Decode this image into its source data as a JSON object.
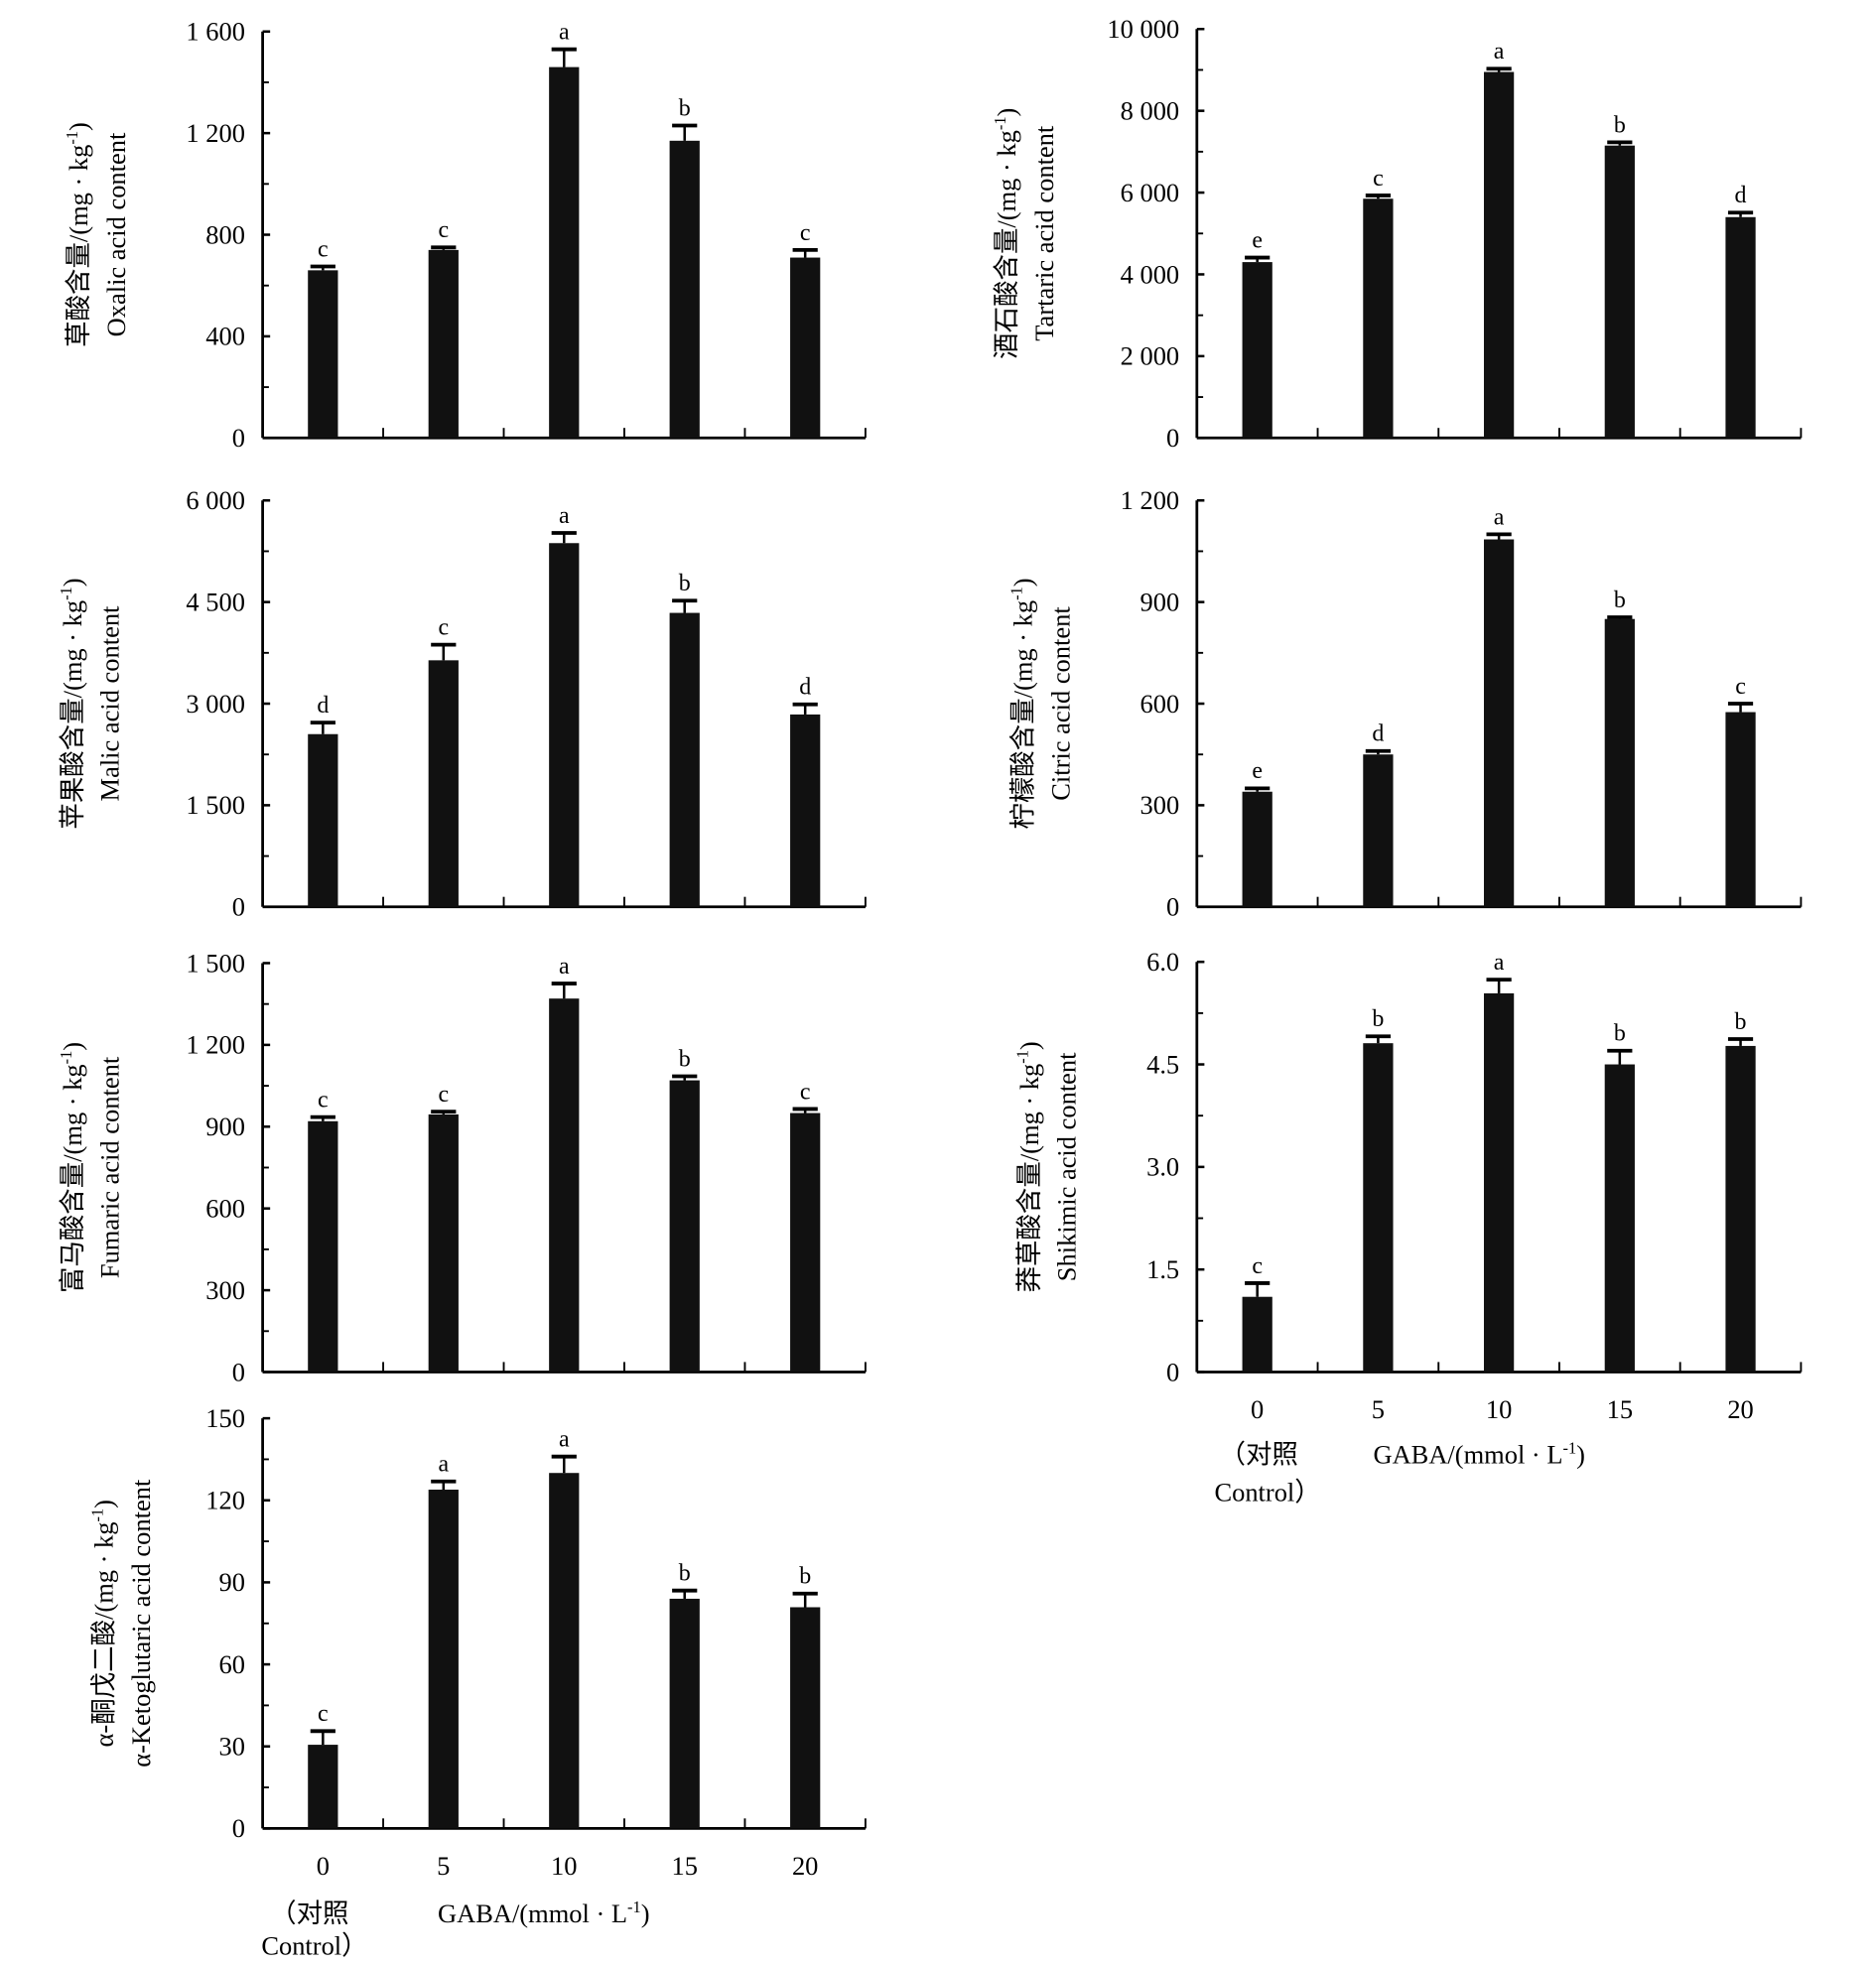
{
  "x_categories": [
    "0",
    "5",
    "10",
    "15",
    "20"
  ],
  "x_control_line1": "（对照",
  "x_control_line2": "Control）",
  "x_axis_title": "GABA/(mmol · L",
  "x_axis_title_sup": "-1",
  "x_axis_title_end": ")",
  "chart_data": [
    {
      "type": "bar",
      "id": "oxalic",
      "ylabel_cn": "草酸含量/(mg · kg",
      "ylabel_en": "Oxalic acid content",
      "ylim": [
        0,
        1600
      ],
      "yticks": [
        0,
        400,
        800,
        1200,
        1600
      ],
      "ytick_labels": [
        "0",
        "400",
        "800",
        "1 200",
        "1 600"
      ],
      "values": [
        660,
        740,
        1460,
        1170,
        710
      ],
      "errors": [
        15,
        10,
        70,
        60,
        30
      ],
      "letters": [
        "c",
        "c",
        "a",
        "b",
        "c"
      ]
    },
    {
      "type": "bar",
      "id": "tartaric",
      "ylabel_cn": "酒石酸含量/(mg · kg",
      "ylabel_en": "Tartaric acid content",
      "ylim": [
        0,
        10000
      ],
      "yticks": [
        0,
        2000,
        4000,
        6000,
        8000,
        10000
      ],
      "ytick_labels": [
        "0",
        "2 000",
        "4 000",
        "6 000",
        "8 000",
        "10 000"
      ],
      "values": [
        4300,
        5850,
        8950,
        7150,
        5400
      ],
      "errors": [
        110,
        80,
        80,
        80,
        110
      ],
      "letters": [
        "e",
        "c",
        "a",
        "b",
        "d"
      ]
    },
    {
      "type": "bar",
      "id": "malic",
      "ylabel_cn": "苹果酸含量/(mg · kg",
      "ylabel_en": "Malic acid content",
      "ylim": [
        0,
        6000
      ],
      "yticks": [
        0,
        1500,
        3000,
        4500,
        6000
      ],
      "ytick_labels": [
        "0",
        "1 500",
        "3 000",
        "4 500",
        "6 000"
      ],
      "values": [
        2550,
        3640,
        5370,
        4340,
        2840
      ],
      "errors": [
        170,
        230,
        150,
        180,
        150
      ],
      "letters": [
        "d",
        "c",
        "a",
        "b",
        "d"
      ]
    },
    {
      "type": "bar",
      "id": "citric",
      "ylabel_cn": "柠檬酸含量/(mg · kg",
      "ylabel_en": "Citric acid content",
      "ylim": [
        0,
        1200
      ],
      "yticks": [
        0,
        300,
        600,
        900,
        1200
      ],
      "ytick_labels": [
        "0",
        "300",
        "600",
        "900",
        "1 200"
      ],
      "values": [
        340,
        450,
        1085,
        850,
        575
      ],
      "errors": [
        10,
        10,
        15,
        5,
        25
      ],
      "letters": [
        "e",
        "d",
        "a",
        "b",
        "c"
      ]
    },
    {
      "type": "bar",
      "id": "fumaric",
      "ylabel_cn": "富马酸含量/(mg · kg",
      "ylabel_en": "Fumaric acid content",
      "ylim": [
        0,
        1500
      ],
      "yticks": [
        0,
        300,
        600,
        900,
        1200,
        1500
      ],
      "ytick_labels": [
        "0",
        "300",
        "600",
        "900",
        "1 200",
        "1 500"
      ],
      "values": [
        920,
        945,
        1370,
        1070,
        950
      ],
      "errors": [
        15,
        10,
        55,
        15,
        15
      ],
      "letters": [
        "c",
        "c",
        "a",
        "b",
        "c"
      ]
    },
    {
      "type": "bar",
      "id": "shikimic",
      "ylabel_cn": "莽草酸含量/(mg · kg",
      "ylabel_en": "Shikimic acid content",
      "ylim": [
        0,
        6
      ],
      "yticks": [
        0,
        1.5,
        3,
        4.5,
        6
      ],
      "ytick_labels": [
        "0",
        "1.5",
        "3.0",
        "4.5",
        "6.0"
      ],
      "values": [
        1.1,
        4.81,
        5.54,
        4.5,
        4.77
      ],
      "errors": [
        0.2,
        0.1,
        0.2,
        0.2,
        0.1
      ],
      "letters": [
        "c",
        "b",
        "a",
        "b",
        "b"
      ]
    },
    {
      "type": "bar",
      "id": "ketoglutaric",
      "ylabel_cn": "α-酮戊二酸/(mg · kg",
      "ylabel_en": "α-Ketoglutaric acid content",
      "ylim": [
        0,
        150
      ],
      "yticks": [
        0,
        30,
        60,
        90,
        120,
        150
      ],
      "ytick_labels": [
        "0",
        "30",
        "60",
        "90",
        "120",
        "150"
      ],
      "values": [
        30.6,
        123.9,
        130,
        84,
        80.9
      ],
      "errors": [
        5,
        3,
        6,
        3,
        5
      ],
      "letters": [
        "c",
        "a",
        "a",
        "b",
        "b"
      ]
    }
  ],
  "ylabel_unit_sup": "-1",
  "ylabel_unit_end": ")"
}
